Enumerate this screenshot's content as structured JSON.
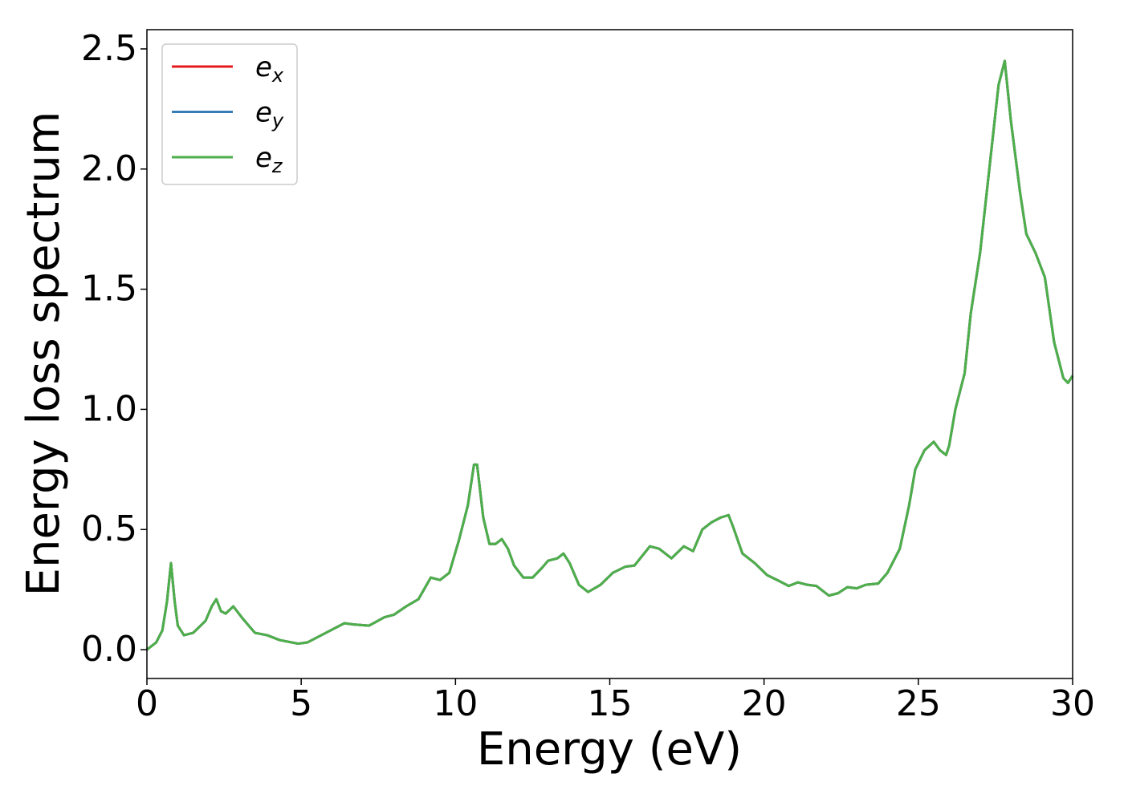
{
  "chart_data": {
    "type": "line",
    "xlabel": "Energy (eV)",
    "ylabel": "Energy loss spectrum",
    "x": [
      0,
      0.3,
      0.5,
      0.65,
      0.78,
      0.9,
      1.0,
      1.2,
      1.5,
      1.9,
      2.1,
      2.25,
      2.4,
      2.55,
      2.8,
      3.1,
      3.5,
      3.9,
      4.3,
      4.9,
      5.2,
      5.8,
      6.4,
      6.7,
      7.2,
      7.7,
      8.0,
      8.4,
      8.8,
      9.2,
      9.5,
      9.8,
      10.1,
      10.4,
      10.6,
      10.7,
      10.9,
      11.1,
      11.3,
      11.5,
      11.7,
      11.9,
      12.2,
      12.5,
      12.8,
      13.0,
      13.3,
      13.5,
      13.7,
      14.0,
      14.3,
      14.7,
      15.1,
      15.5,
      15.8,
      16.3,
      16.6,
      17.0,
      17.4,
      17.7,
      18.0,
      18.3,
      18.6,
      18.85,
      19.0,
      19.3,
      19.7,
      20.1,
      20.5,
      20.8,
      21.1,
      21.4,
      21.7,
      22.1,
      22.4,
      22.7,
      23.0,
      23.3,
      23.7,
      24.0,
      24.4,
      24.7,
      24.9,
      25.2,
      25.5,
      25.7,
      25.9,
      26.0,
      26.2,
      26.5,
      26.7,
      27.0,
      27.3,
      27.6,
      27.8,
      28.0,
      28.3,
      28.5,
      28.8,
      29.1,
      29.4,
      29.7,
      29.85,
      30.0
    ],
    "series": [
      {
        "name": "e_x",
        "color": "#e41a1c",
        "values": [
          0,
          0.03,
          0.08,
          0.2,
          0.36,
          0.2,
          0.1,
          0.06,
          0.07,
          0.12,
          0.18,
          0.21,
          0.16,
          0.15,
          0.18,
          0.13,
          0.07,
          0.06,
          0.04,
          0.025,
          0.03,
          0.07,
          0.11,
          0.105,
          0.1,
          0.135,
          0.145,
          0.18,
          0.21,
          0.3,
          0.29,
          0.32,
          0.45,
          0.6,
          0.77,
          0.77,
          0.55,
          0.44,
          0.44,
          0.46,
          0.42,
          0.35,
          0.3,
          0.3,
          0.34,
          0.37,
          0.38,
          0.4,
          0.36,
          0.27,
          0.24,
          0.27,
          0.32,
          0.345,
          0.35,
          0.43,
          0.42,
          0.38,
          0.43,
          0.41,
          0.5,
          0.53,
          0.55,
          0.56,
          0.51,
          0.4,
          0.36,
          0.31,
          0.285,
          0.265,
          0.28,
          0.27,
          0.265,
          0.225,
          0.235,
          0.26,
          0.255,
          0.27,
          0.275,
          0.32,
          0.42,
          0.6,
          0.75,
          0.83,
          0.865,
          0.83,
          0.81,
          0.85,
          1.0,
          1.15,
          1.4,
          1.65,
          2.0,
          2.35,
          2.45,
          2.2,
          1.9,
          1.73,
          1.65,
          1.55,
          1.28,
          1.13,
          1.11,
          1.14
        ]
      },
      {
        "name": "e_y",
        "color": "#377eb8",
        "values": [
          0,
          0.03,
          0.08,
          0.2,
          0.36,
          0.2,
          0.1,
          0.06,
          0.07,
          0.12,
          0.18,
          0.21,
          0.16,
          0.15,
          0.18,
          0.13,
          0.07,
          0.06,
          0.04,
          0.025,
          0.03,
          0.07,
          0.11,
          0.105,
          0.1,
          0.135,
          0.145,
          0.18,
          0.21,
          0.3,
          0.29,
          0.32,
          0.45,
          0.6,
          0.77,
          0.77,
          0.55,
          0.44,
          0.44,
          0.46,
          0.42,
          0.35,
          0.3,
          0.3,
          0.34,
          0.37,
          0.38,
          0.4,
          0.36,
          0.27,
          0.24,
          0.27,
          0.32,
          0.345,
          0.35,
          0.43,
          0.42,
          0.38,
          0.43,
          0.41,
          0.5,
          0.53,
          0.55,
          0.56,
          0.51,
          0.4,
          0.36,
          0.31,
          0.285,
          0.265,
          0.28,
          0.27,
          0.265,
          0.225,
          0.235,
          0.26,
          0.255,
          0.27,
          0.275,
          0.32,
          0.42,
          0.6,
          0.75,
          0.83,
          0.865,
          0.83,
          0.81,
          0.85,
          1.0,
          1.15,
          1.4,
          1.65,
          2.0,
          2.35,
          2.45,
          2.2,
          1.9,
          1.73,
          1.65,
          1.55,
          1.28,
          1.13,
          1.11,
          1.14
        ]
      },
      {
        "name": "e_z",
        "color": "#4daf4a",
        "values": [
          0,
          0.03,
          0.08,
          0.2,
          0.36,
          0.2,
          0.1,
          0.06,
          0.07,
          0.12,
          0.18,
          0.21,
          0.16,
          0.15,
          0.18,
          0.13,
          0.07,
          0.06,
          0.04,
          0.025,
          0.03,
          0.07,
          0.11,
          0.105,
          0.1,
          0.135,
          0.145,
          0.18,
          0.21,
          0.3,
          0.29,
          0.32,
          0.45,
          0.6,
          0.77,
          0.77,
          0.55,
          0.44,
          0.44,
          0.46,
          0.42,
          0.35,
          0.3,
          0.3,
          0.34,
          0.37,
          0.38,
          0.4,
          0.36,
          0.27,
          0.24,
          0.27,
          0.32,
          0.345,
          0.35,
          0.43,
          0.42,
          0.38,
          0.43,
          0.41,
          0.5,
          0.53,
          0.55,
          0.56,
          0.51,
          0.4,
          0.36,
          0.31,
          0.285,
          0.265,
          0.28,
          0.27,
          0.265,
          0.225,
          0.235,
          0.26,
          0.255,
          0.27,
          0.275,
          0.32,
          0.42,
          0.6,
          0.75,
          0.83,
          0.865,
          0.83,
          0.81,
          0.85,
          1.0,
          1.15,
          1.4,
          1.65,
          2.0,
          2.35,
          2.45,
          2.2,
          1.9,
          1.73,
          1.65,
          1.55,
          1.28,
          1.13,
          1.11,
          1.14
        ]
      }
    ],
    "xlim": [
      0,
      30
    ],
    "xticks": [
      0,
      5,
      10,
      15,
      20,
      25,
      30
    ],
    "ylim": [
      -0.12,
      2.58
    ],
    "yticks": [
      {
        "value": 0,
        "label": "0.0"
      },
      0.5,
      {
        "value": 1,
        "label": "1.0"
      },
      1.5,
      {
        "value": 2,
        "label": "2.0"
      },
      2.5
    ],
    "legend": "upper left",
    "grid": false
  }
}
